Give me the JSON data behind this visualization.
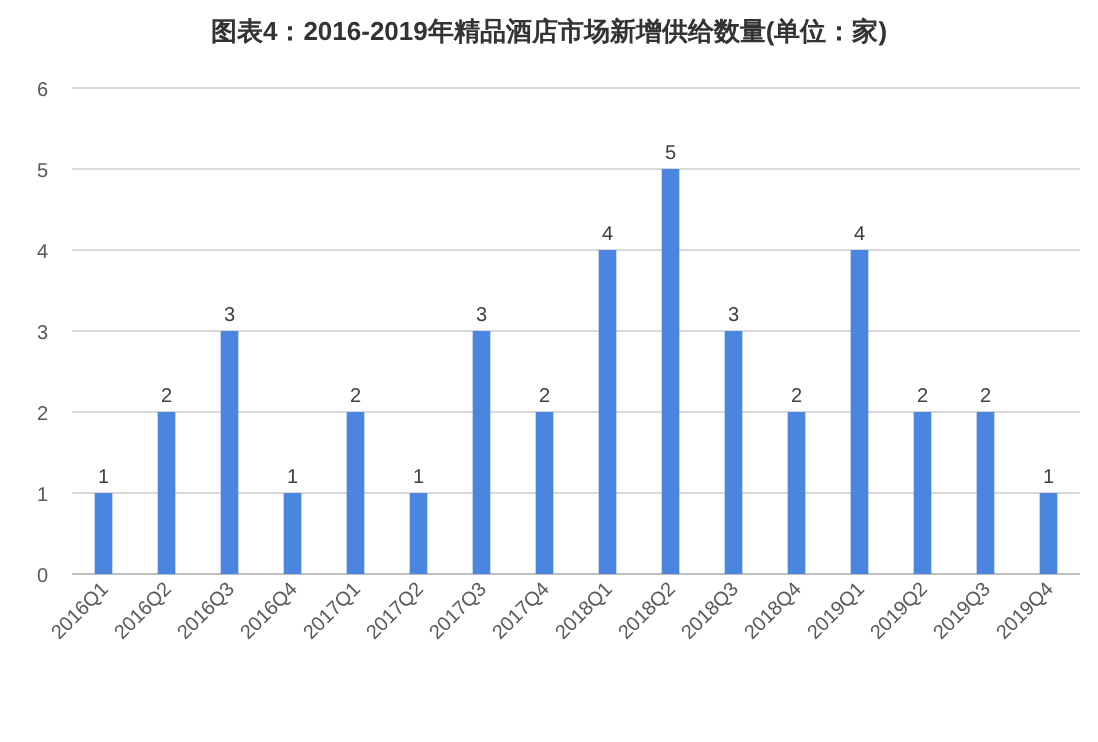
{
  "chart_data": {
    "type": "bar",
    "title": "图表4：2016-2019年精品酒店市场新增供给数量(单位：家)",
    "categories": [
      "2016Q1",
      "2016Q2",
      "2016Q3",
      "2016Q4",
      "2017Q1",
      "2017Q2",
      "2017Q3",
      "2017Q4",
      "2018Q1",
      "2018Q2",
      "2018Q3",
      "2018Q4",
      "2019Q1",
      "2019Q2",
      "2019Q3",
      "2019Q4"
    ],
    "values": [
      1,
      2,
      3,
      1,
      2,
      1,
      3,
      2,
      4,
      5,
      3,
      2,
      4,
      2,
      2,
      1
    ],
    "color": "#4a86e0",
    "ylim": [
      0,
      6
    ],
    "yticks": [
      0,
      1,
      2,
      3,
      4,
      5,
      6
    ],
    "grid": "y",
    "data_labels": true
  }
}
